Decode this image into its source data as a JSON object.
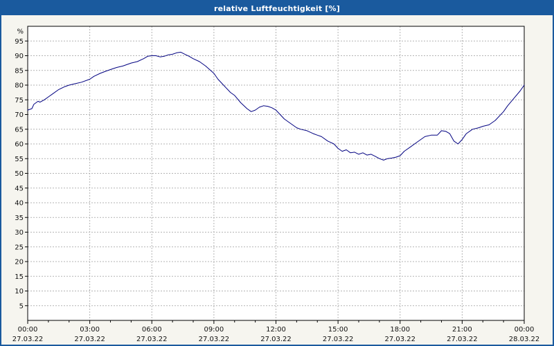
{
  "window": {
    "title": "relative Luftfeuchtigkeit [%]"
  },
  "colors": {
    "titlebar": "#1a5a9e",
    "border": "#1a5a9e",
    "page_bg": "#f6f5ef",
    "plot_bg": "#ffffff",
    "grid": "#b3b3b3",
    "axis": "#000000",
    "line": "#000080"
  },
  "chart_data": {
    "type": "line",
    "title": "relative Luftfeuchtigkeit [%]",
    "unit_label": "%",
    "grid": "dashed",
    "legend": "none",
    "xlim": [
      0,
      24
    ],
    "ylim": [
      0,
      100
    ],
    "y_ticks": [
      5,
      10,
      15,
      20,
      25,
      30,
      35,
      40,
      45,
      50,
      55,
      60,
      65,
      70,
      75,
      80,
      85,
      90,
      95
    ],
    "x_major_ticks": [
      0,
      3,
      6,
      9,
      12,
      15,
      18,
      21,
      24
    ],
    "x_tick_labels": [
      "00:00",
      "03:00",
      "06:00",
      "09:00",
      "12:00",
      "15:00",
      "18:00",
      "21:00",
      "00:00"
    ],
    "x_date_labels": [
      "27.03.22",
      "27.03.22",
      "27.03.22",
      "27.03.22",
      "27.03.22",
      "27.03.22",
      "27.03.22",
      "27.03.22",
      "28.03.22"
    ],
    "series": [
      {
        "name": "relative Luftfeuchtigkeit",
        "color": "#000080",
        "points": [
          [
            0.0,
            71.5
          ],
          [
            0.2,
            72.0
          ],
          [
            0.3,
            73.5
          ],
          [
            0.5,
            74.5
          ],
          [
            0.6,
            74.2
          ],
          [
            0.8,
            75.0
          ],
          [
            1.0,
            76.0
          ],
          [
            1.2,
            77.0
          ],
          [
            1.5,
            78.5
          ],
          [
            1.8,
            79.5
          ],
          [
            2.0,
            80.0
          ],
          [
            2.3,
            80.5
          ],
          [
            2.6,
            81.0
          ],
          [
            3.0,
            82.0
          ],
          [
            3.2,
            83.0
          ],
          [
            3.5,
            84.0
          ],
          [
            3.8,
            84.8
          ],
          [
            4.0,
            85.3
          ],
          [
            4.3,
            86.0
          ],
          [
            4.6,
            86.5
          ],
          [
            5.0,
            87.5
          ],
          [
            5.3,
            88.0
          ],
          [
            5.6,
            89.0
          ],
          [
            5.8,
            89.8
          ],
          [
            6.0,
            90.0
          ],
          [
            6.2,
            90.0
          ],
          [
            6.4,
            89.6
          ],
          [
            6.6,
            89.8
          ],
          [
            6.8,
            90.3
          ],
          [
            7.0,
            90.5
          ],
          [
            7.2,
            91.0
          ],
          [
            7.4,
            91.2
          ],
          [
            7.6,
            90.5
          ],
          [
            7.8,
            89.8
          ],
          [
            8.0,
            89.0
          ],
          [
            8.3,
            88.0
          ],
          [
            8.6,
            86.5
          ],
          [
            9.0,
            84.0
          ],
          [
            9.2,
            82.0
          ],
          [
            9.4,
            80.5
          ],
          [
            9.6,
            79.0
          ],
          [
            9.8,
            77.5
          ],
          [
            10.0,
            76.5
          ],
          [
            10.3,
            74.0
          ],
          [
            10.6,
            72.0
          ],
          [
            10.8,
            71.0
          ],
          [
            11.0,
            71.5
          ],
          [
            11.2,
            72.5
          ],
          [
            11.4,
            73.0
          ],
          [
            11.6,
            72.8
          ],
          [
            11.8,
            72.3
          ],
          [
            12.0,
            71.5
          ],
          [
            12.2,
            70.0
          ],
          [
            12.4,
            68.5
          ],
          [
            12.6,
            67.5
          ],
          [
            12.8,
            66.5
          ],
          [
            13.0,
            65.5
          ],
          [
            13.2,
            65.0
          ],
          [
            13.5,
            64.5
          ],
          [
            13.8,
            63.5
          ],
          [
            14.0,
            63.0
          ],
          [
            14.2,
            62.5
          ],
          [
            14.5,
            61.0
          ],
          [
            14.8,
            60.0
          ],
          [
            15.0,
            58.5
          ],
          [
            15.2,
            57.5
          ],
          [
            15.4,
            58.0
          ],
          [
            15.6,
            57.0
          ],
          [
            15.8,
            57.2
          ],
          [
            16.0,
            56.5
          ],
          [
            16.2,
            57.0
          ],
          [
            16.4,
            56.2
          ],
          [
            16.6,
            56.5
          ],
          [
            16.8,
            55.8
          ],
          [
            17.0,
            55.0
          ],
          [
            17.2,
            54.5
          ],
          [
            17.4,
            55.0
          ],
          [
            17.6,
            55.2
          ],
          [
            17.8,
            55.5
          ],
          [
            18.0,
            56.0
          ],
          [
            18.2,
            57.5
          ],
          [
            18.5,
            59.0
          ],
          [
            18.8,
            60.5
          ],
          [
            19.0,
            61.5
          ],
          [
            19.2,
            62.5
          ],
          [
            19.5,
            63.0
          ],
          [
            19.8,
            63.0
          ],
          [
            20.0,
            64.5
          ],
          [
            20.2,
            64.3
          ],
          [
            20.4,
            63.5
          ],
          [
            20.6,
            61.0
          ],
          [
            20.8,
            60.0
          ],
          [
            21.0,
            61.5
          ],
          [
            21.2,
            63.5
          ],
          [
            21.5,
            65.0
          ],
          [
            21.8,
            65.5
          ],
          [
            22.0,
            66.0
          ],
          [
            22.3,
            66.5
          ],
          [
            22.6,
            68.0
          ],
          [
            23.0,
            71.0
          ],
          [
            23.2,
            73.0
          ],
          [
            23.5,
            75.5
          ],
          [
            23.8,
            78.0
          ],
          [
            24.0,
            80.0
          ]
        ]
      }
    ]
  }
}
